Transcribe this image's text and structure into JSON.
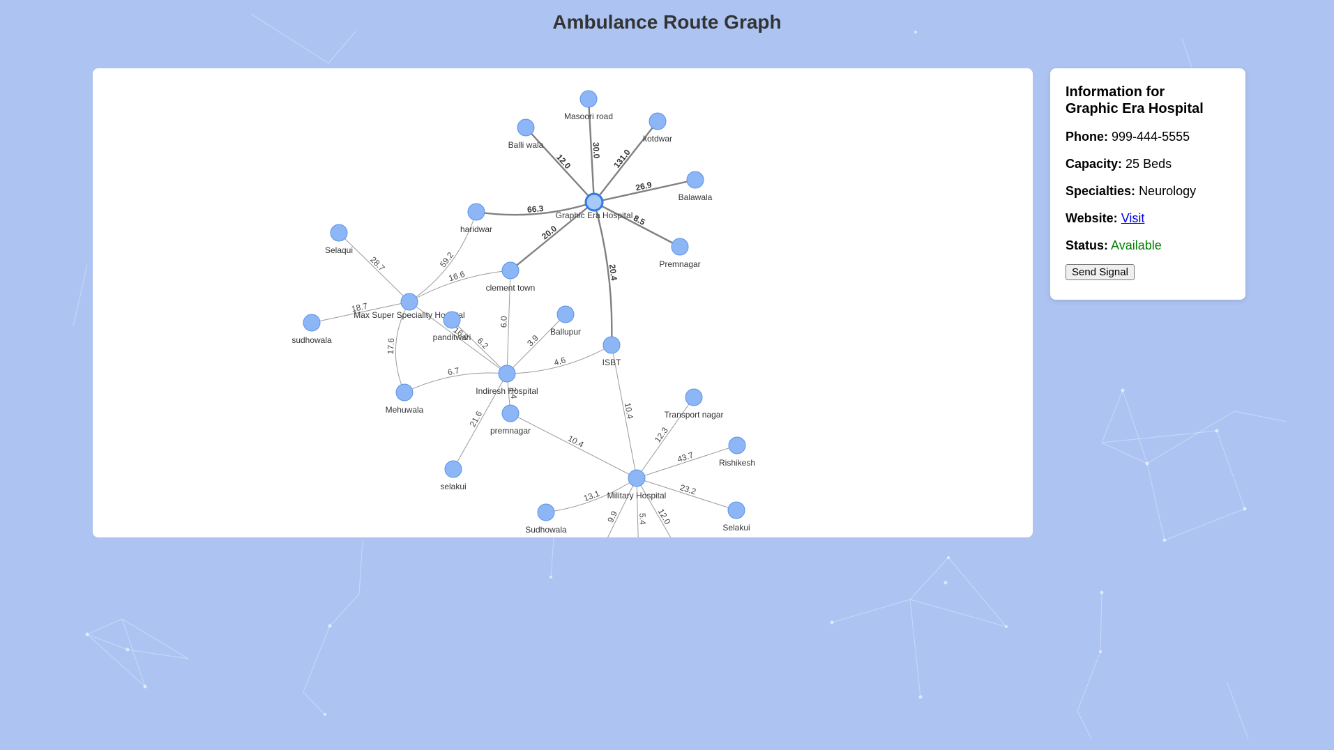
{
  "page": {
    "title": "Ambulance Route Graph"
  },
  "graph": {
    "selected_node": "Graphic Era Hospital",
    "nodes": [
      {
        "id": "Graphic Era Hospital"
      },
      {
        "id": "Masoori road"
      },
      {
        "id": "Balli wala"
      },
      {
        "id": "kotdwar"
      },
      {
        "id": "Balawala"
      },
      {
        "id": "Premnagar"
      },
      {
        "id": "haridwar"
      },
      {
        "id": "clement town"
      },
      {
        "id": "Selaqui"
      },
      {
        "id": "Max Super Speciality Hospital"
      },
      {
        "id": "sudhowala"
      },
      {
        "id": "panditwari"
      },
      {
        "id": "Ballupur"
      },
      {
        "id": "ISBT"
      },
      {
        "id": "Indiresh Hospital"
      },
      {
        "id": "Mehuwala"
      },
      {
        "id": "premnagar"
      },
      {
        "id": "selakui"
      },
      {
        "id": "Transport nagar"
      },
      {
        "id": "Rishikesh"
      },
      {
        "id": "Military Hospital"
      },
      {
        "id": "Sudhowala"
      },
      {
        "id": "Selakui"
      },
      {
        "id": "node-offscreen-1"
      },
      {
        "id": "node-offscreen-2"
      },
      {
        "id": "node-offscreen-3"
      }
    ],
    "edges": [
      {
        "source": "Graphic Era Hospital",
        "target": "Masoori road",
        "weight": "30.0",
        "highlight": true
      },
      {
        "source": "Graphic Era Hospital",
        "target": "Balli wala",
        "weight": "12.0",
        "highlight": true
      },
      {
        "source": "Graphic Era Hospital",
        "target": "kotdwar",
        "weight": "131.0",
        "highlight": true
      },
      {
        "source": "Graphic Era Hospital",
        "target": "Balawala",
        "weight": "26.9",
        "highlight": true
      },
      {
        "source": "Graphic Era Hospital",
        "target": "Premnagar",
        "weight": "8.5",
        "highlight": true
      },
      {
        "source": "Graphic Era Hospital",
        "target": "haridwar",
        "weight": "66.3",
        "highlight": true
      },
      {
        "source": "Graphic Era Hospital",
        "target": "clement town",
        "weight": "20.0",
        "highlight": true
      },
      {
        "source": "Graphic Era Hospital",
        "target": "ISBT",
        "weight": "20.4",
        "highlight": true
      },
      {
        "source": "haridwar",
        "target": "Max Super Speciality Hospital",
        "weight": "59.2"
      },
      {
        "source": "Selaqui",
        "target": "Max Super Speciality Hospital",
        "weight": "28.7"
      },
      {
        "source": "clement town",
        "target": "Max Super Speciality Hospital",
        "weight": "16.6"
      },
      {
        "source": "sudhowala",
        "target": "Max Super Speciality Hospital",
        "weight": "18.7"
      },
      {
        "source": "Max Super Speciality Hospital",
        "target": "Mehuwala",
        "weight": "17.6"
      },
      {
        "source": "Max Super Speciality Hospital",
        "target": "Indiresh Hospital",
        "weight": "16.0"
      },
      {
        "source": "clement town",
        "target": "Indiresh Hospital",
        "weight": "6.0"
      },
      {
        "source": "panditwari",
        "target": "Indiresh Hospital",
        "weight": "6.2"
      },
      {
        "source": "Ballupur",
        "target": "Indiresh Hospital",
        "weight": "3.9"
      },
      {
        "source": "ISBT",
        "target": "Indiresh Hospital",
        "weight": "4.6"
      },
      {
        "source": "Mehuwala",
        "target": "Indiresh Hospital",
        "weight": "6.7"
      },
      {
        "source": "premnagar",
        "target": "Indiresh Hospital",
        "weight": "2.4"
      },
      {
        "source": "selakui",
        "target": "Indiresh Hospital",
        "weight": "21.6"
      },
      {
        "source": "premnagar",
        "target": "Military Hospital",
        "weight": "10.4"
      },
      {
        "source": "ISBT",
        "target": "Military Hospital",
        "weight": "10.4"
      },
      {
        "source": "Transport nagar",
        "target": "Military Hospital",
        "weight": "12.3"
      },
      {
        "source": "Rishikesh",
        "target": "Military Hospital",
        "weight": "43.7"
      },
      {
        "source": "Sudhowala",
        "target": "Military Hospital",
        "weight": "13.1"
      },
      {
        "source": "Selakui",
        "target": "Military Hospital",
        "weight": "23.2"
      },
      {
        "source": "Military Hospital",
        "target": "node-offscreen-1",
        "weight": "9.9"
      },
      {
        "source": "Military Hospital",
        "target": "node-offscreen-2",
        "weight": "5.4"
      },
      {
        "source": "Military Hospital",
        "target": "node-offscreen-3",
        "weight": "12.0"
      }
    ]
  },
  "info": {
    "heading_prefix": "Information for",
    "hospital_name": "Graphic Era Hospital",
    "phone_label": "Phone:",
    "phone": "999-444-5555",
    "capacity_label": "Capacity:",
    "capacity": "25 Beds",
    "specialties_label": "Specialties:",
    "specialties": "Neurology",
    "website_label": "Website:",
    "website_link_text": "Visit",
    "status_label": "Status:",
    "status": "Available",
    "status_color": "#008000",
    "send_button_label": "Send Signal"
  },
  "colors": {
    "background": "#adc4f3",
    "node_fill": "#8db6f7",
    "node_stroke": "#5b93e6",
    "selected_stroke": "#2f7ae5"
  }
}
